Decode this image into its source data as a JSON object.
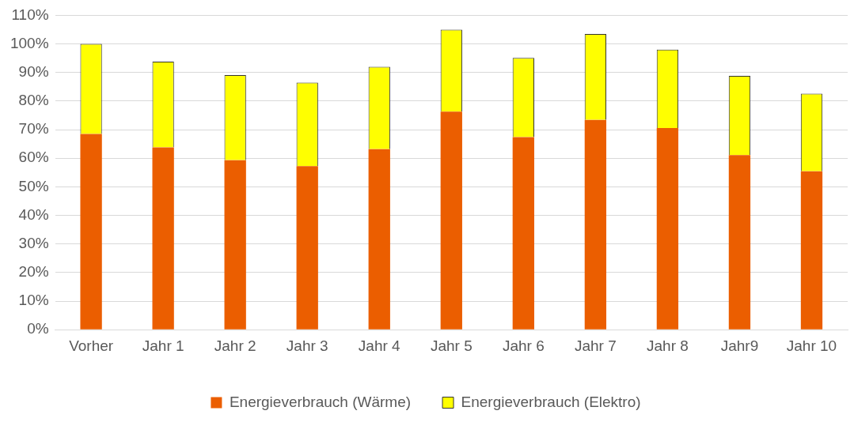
{
  "chart_data": {
    "type": "bar",
    "stacked": true,
    "categories": [
      "Vorher",
      "Jahr 1",
      "Jahr 2",
      "Jahr 3",
      "Jahr 4",
      "Jahr 5",
      "Jahr 6",
      "Jahr 7",
      "Jahr 8",
      "Jahr9",
      "Jahr 10"
    ],
    "series": [
      {
        "name": "Energieverbrauch (Wärme)",
        "color": "#eb5e00",
        "values": [
          68.5,
          63.8,
          59.3,
          57.2,
          63.2,
          76.3,
          67.4,
          73.4,
          70.6,
          61.1,
          55.4
        ]
      },
      {
        "name": "Energieverbrauch (Elektro)",
        "color": "#ffff00",
        "values": [
          31.5,
          30.0,
          29.8,
          29.3,
          28.8,
          28.7,
          27.7,
          30.1,
          27.4,
          27.7,
          27.2
        ]
      }
    ],
    "ylim": [
      0,
      110
    ],
    "yticks": [
      {
        "value": 0,
        "label": "0%"
      },
      {
        "value": 10,
        "label": "10%"
      },
      {
        "value": 20,
        "label": "20%"
      },
      {
        "value": 30,
        "label": "30%"
      },
      {
        "value": 40,
        "label": "40%"
      },
      {
        "value": 50,
        "label": "50%"
      },
      {
        "value": 60,
        "label": "60%"
      },
      {
        "value": 70,
        "label": "70%"
      },
      {
        "value": 80,
        "label": "80%"
      },
      {
        "value": 90,
        "label": "90%"
      },
      {
        "value": 100,
        "label": "100%"
      },
      {
        "value": 110,
        "label": "110%"
      }
    ],
    "grid": "y",
    "legend": "bottom"
  }
}
